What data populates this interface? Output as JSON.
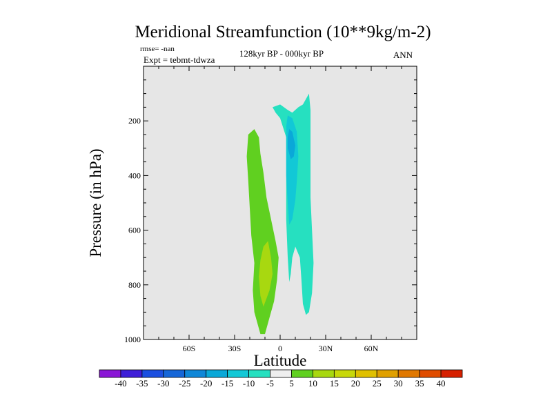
{
  "chart_data": {
    "type": "contour",
    "title": "Meridional Streamfunction (10**9kg/m-2)",
    "left_info": [
      "rmse= -nan",
      "Expt = tebmt-tdwza"
    ],
    "center_subtitle": "128kyr BP - 000kyr BP",
    "right_subtitle": "ANN",
    "xlabel": "Latitude",
    "ylabel": "Pressure (in hPa)",
    "xlim": [
      -90,
      90
    ],
    "ylim": [
      1000,
      0
    ],
    "xticks": [
      {
        "value": -60,
        "label": "60S"
      },
      {
        "value": -30,
        "label": "30S"
      },
      {
        "value": 0,
        "label": "0"
      },
      {
        "value": 30,
        "label": "30N"
      },
      {
        "value": 60,
        "label": "60N"
      }
    ],
    "yticks": [
      {
        "value": 200,
        "label": "200"
      },
      {
        "value": 400,
        "label": "400"
      },
      {
        "value": 600,
        "label": "600"
      },
      {
        "value": 800,
        "label": "800"
      },
      {
        "value": 1000,
        "label": "1000"
      }
    ],
    "background_color": "#e6e6e6",
    "colorbar": {
      "labels": [
        "-40",
        "-35",
        "-30",
        "-25",
        "-20",
        "-15",
        "-10",
        "-5",
        "5",
        "10",
        "15",
        "20",
        "25",
        "30",
        "35",
        "40"
      ],
      "colors": [
        "#8a16d6",
        "#3f1fd8",
        "#1b4fe0",
        "#1566d8",
        "#0f87d8",
        "#0aa8d8",
        "#12c8d6",
        "#26e0c0",
        "#eeeeee",
        "#60d020",
        "#a8d810",
        "#c8d80a",
        "#e0c000",
        "#e0a000",
        "#e07800",
        "#e04c00",
        "#d62000"
      ]
    },
    "contours": [
      {
        "name": "green-lobe",
        "level": "5 to 10",
        "color": "#60d020",
        "points": [
          [
            -13,
            980
          ],
          [
            -10,
            980
          ],
          [
            -7,
            920
          ],
          [
            -4,
            860
          ],
          [
            -2,
            780
          ],
          [
            -1,
            700
          ],
          [
            -3,
            640
          ],
          [
            -6,
            560
          ],
          [
            -9,
            480
          ],
          [
            -11,
            390
          ],
          [
            -13,
            320
          ],
          [
            -14,
            260
          ],
          [
            -17,
            230
          ],
          [
            -21,
            250
          ],
          [
            -22,
            330
          ],
          [
            -21,
            420
          ],
          [
            -20,
            520
          ],
          [
            -19,
            620
          ],
          [
            -17,
            720
          ],
          [
            -18,
            820
          ],
          [
            -17,
            900
          ]
        ]
      },
      {
        "name": "yellow-green-core",
        "level": "10 to 15",
        "color": "#a8d810",
        "points": [
          [
            -11,
            880
          ],
          [
            -7,
            820
          ],
          [
            -5,
            760
          ],
          [
            -6,
            700
          ],
          [
            -8,
            640
          ],
          [
            -11,
            660
          ],
          [
            -13,
            710
          ],
          [
            -14,
            770
          ],
          [
            -13,
            840
          ]
        ]
      },
      {
        "name": "cyan-lobe",
        "level": "-10 to -5",
        "color": "#26e0c0",
        "points": [
          [
            5,
            160
          ],
          [
            8,
            170
          ],
          [
            12,
            150
          ],
          [
            15,
            140
          ],
          [
            17,
            120
          ],
          [
            19,
            100
          ],
          [
            20,
            160
          ],
          [
            20,
            280
          ],
          [
            20,
            380
          ],
          [
            20,
            480
          ],
          [
            21,
            600
          ],
          [
            22,
            720
          ],
          [
            21,
            830
          ],
          [
            19,
            900
          ],
          [
            17,
            910
          ],
          [
            15,
            870
          ],
          [
            14,
            780
          ],
          [
            13,
            700
          ],
          [
            10,
            660
          ],
          [
            8,
            700
          ],
          [
            7,
            760
          ],
          [
            6,
            790
          ],
          [
            5,
            700
          ],
          [
            4,
            560
          ],
          [
            4,
            400
          ],
          [
            4,
            260
          ],
          [
            0,
            190
          ],
          [
            -3,
            170
          ],
          [
            -5,
            150
          ],
          [
            0,
            140
          ]
        ]
      },
      {
        "name": "blue-core",
        "level": "-15 to -10",
        "color": "#12c8d6",
        "points": [
          [
            5,
            180
          ],
          [
            8,
            190
          ],
          [
            11,
            240
          ],
          [
            12,
            330
          ],
          [
            11,
            420
          ],
          [
            10,
            490
          ],
          [
            8,
            560
          ],
          [
            6,
            580
          ],
          [
            5,
            500
          ],
          [
            4,
            400
          ],
          [
            4,
            300
          ],
          [
            4,
            220
          ]
        ]
      },
      {
        "name": "deep-blue-core",
        "level": "-20 to -15",
        "color": "#0aa8d8",
        "points": [
          [
            6,
            230
          ],
          [
            8,
            240
          ],
          [
            10,
            290
          ],
          [
            9,
            330
          ],
          [
            7,
            340
          ],
          [
            5,
            300
          ],
          [
            5,
            260
          ]
        ]
      }
    ]
  }
}
